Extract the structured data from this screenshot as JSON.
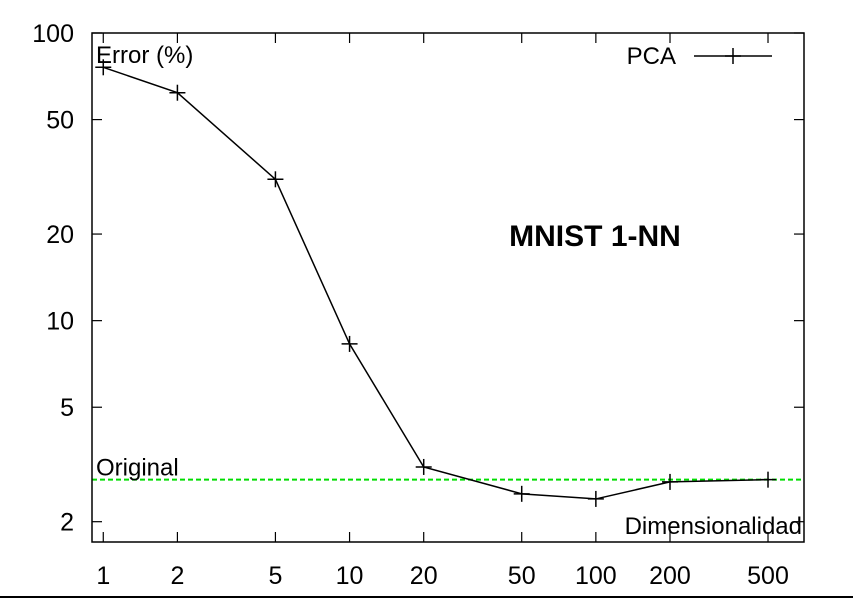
{
  "chart_data": {
    "type": "line",
    "title": "MNIST 1-NN",
    "xlabel": "Dimensionalidad",
    "ylabel": "Error (%)",
    "x_scale": "log",
    "y_scale": "log",
    "xlim": [
      0.9,
      700
    ],
    "ylim": [
      1.7,
      100
    ],
    "x_ticks": [
      1,
      2,
      5,
      10,
      20,
      50,
      100,
      200,
      500
    ],
    "x_tick_labels": [
      "1",
      "2",
      "5",
      "10",
      "20",
      "50",
      "100",
      "200",
      "500"
    ],
    "y_ticks": [
      2,
      5,
      10,
      20,
      50,
      100
    ],
    "y_tick_labels": [
      "2",
      "5",
      "10",
      "20",
      "50",
      "100"
    ],
    "grid": false,
    "legend_position": "top-right",
    "series": [
      {
        "name": "PCA",
        "color": "#000000",
        "marker": "plus",
        "x": [
          1,
          2,
          5,
          10,
          20,
          50,
          100,
          200,
          500
        ],
        "y": [
          76,
          62,
          31,
          8.3,
          3.1,
          2.5,
          2.4,
          2.75,
          2.8
        ]
      }
    ],
    "reference_line": {
      "label": "Original",
      "y": 2.8,
      "color": "#00dd00",
      "style": "dashed"
    }
  }
}
